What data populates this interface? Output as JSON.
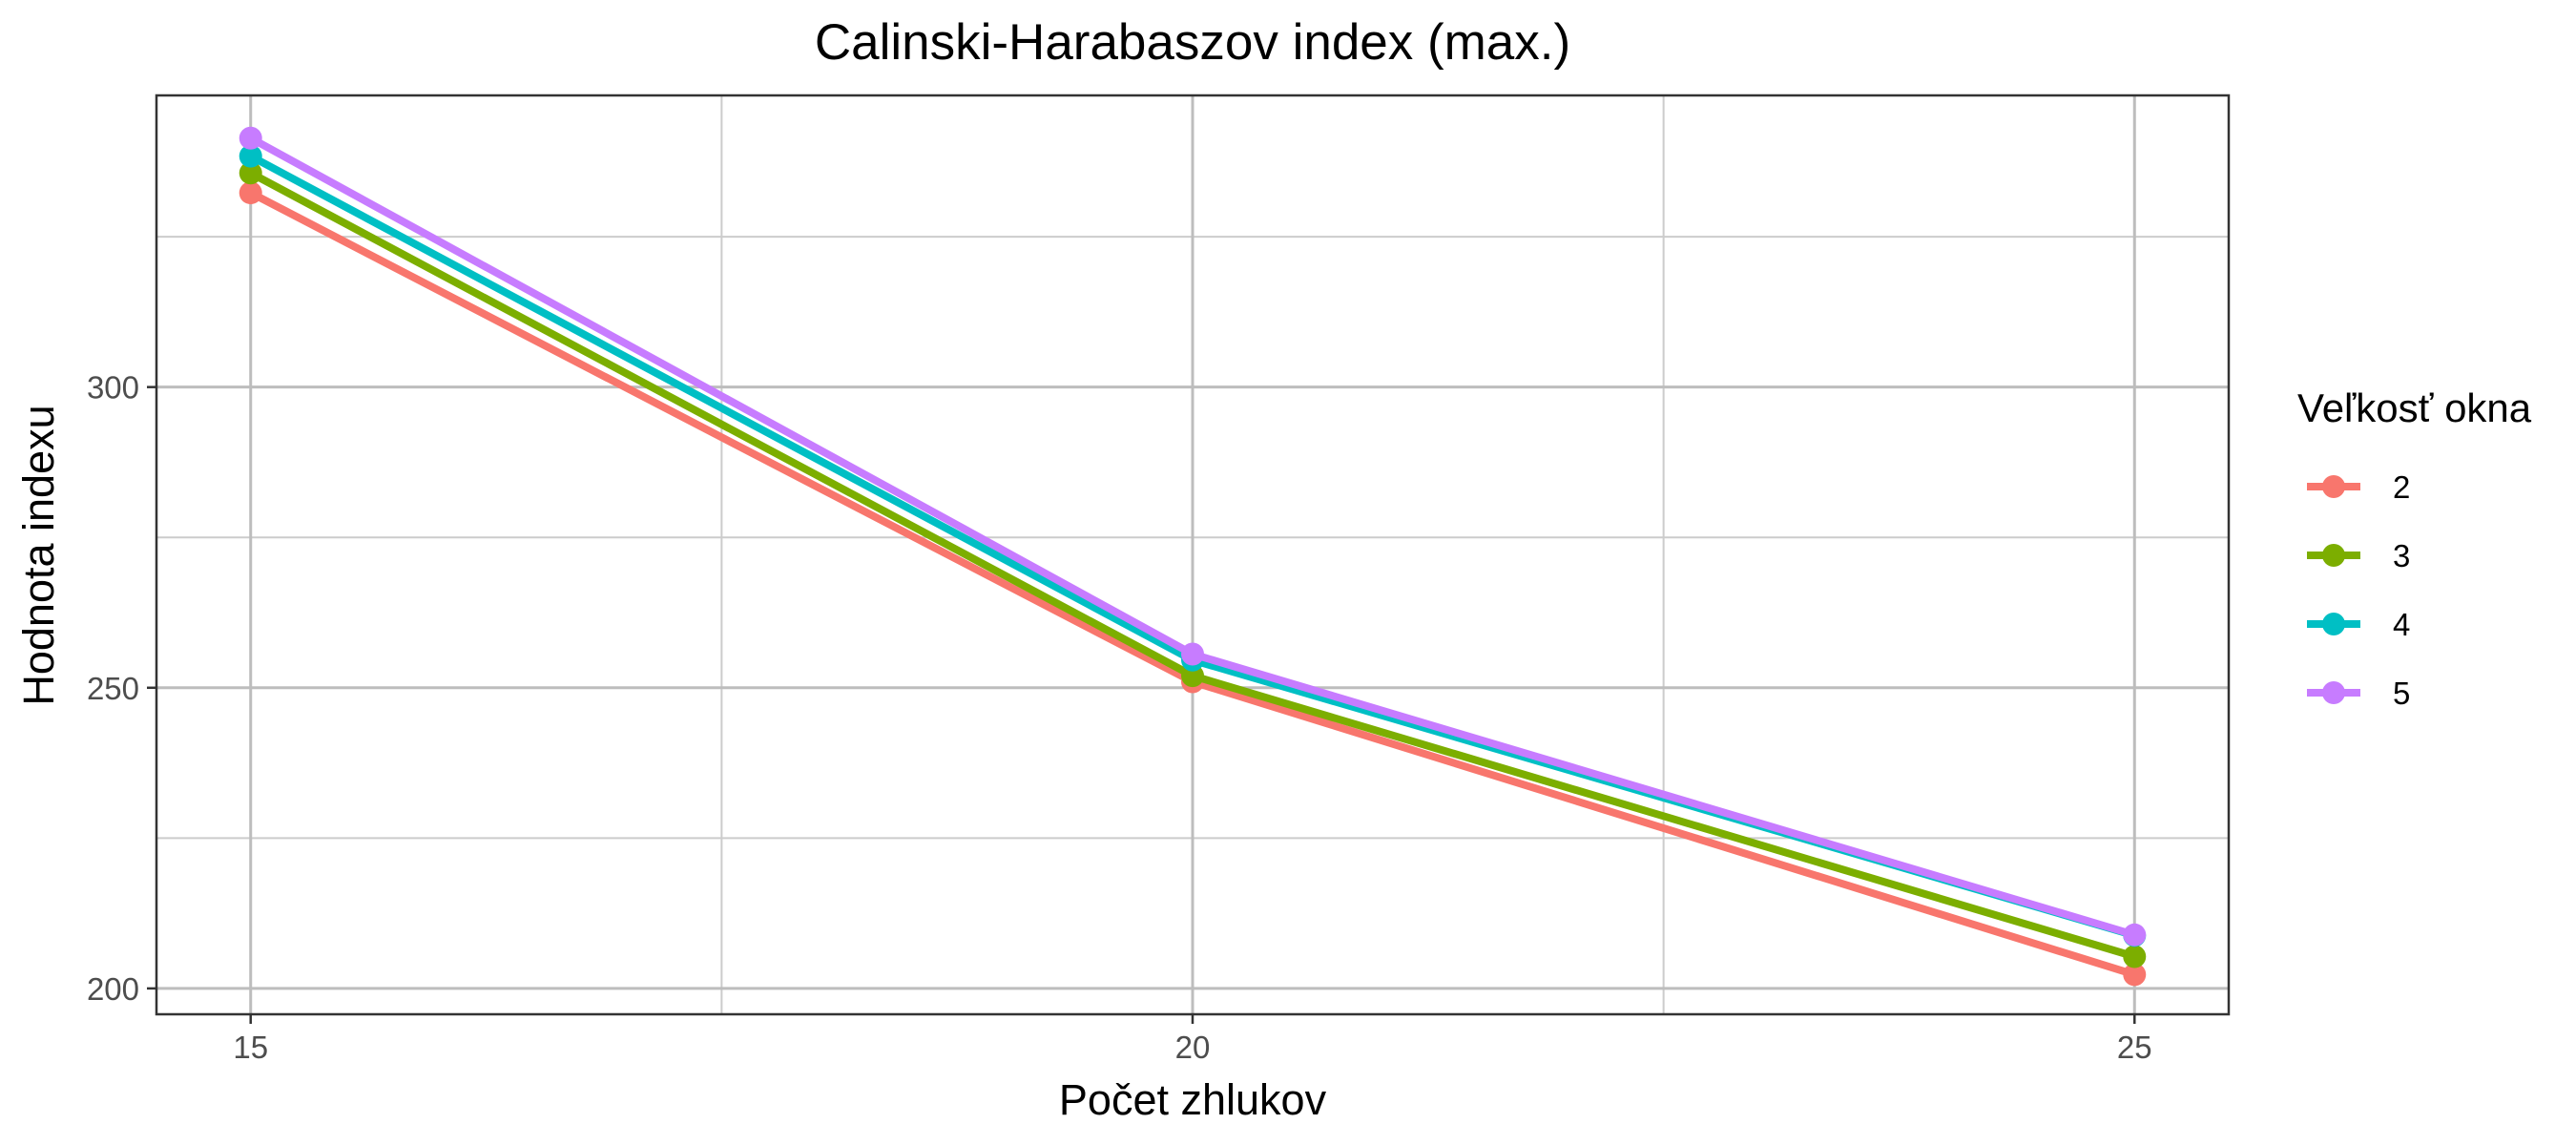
{
  "chart_data": {
    "type": "line",
    "title": "Calinski-Harabaszov index (max.)",
    "xlabel": "Počet zhlukov",
    "ylabel": "Hodnota indexu",
    "x": [
      15,
      20,
      25
    ],
    "xlim": [
      14.5,
      25.5
    ],
    "ylim": [
      195.7,
      348.5
    ],
    "x_ticks": [
      15,
      20,
      25
    ],
    "y_ticks": [
      200,
      250,
      300
    ],
    "x_minor_ticks": [
      17.5,
      22.5
    ],
    "y_minor_ticks": [
      225,
      275,
      325
    ],
    "grid": true,
    "legend": {
      "title": "Veľkosť okna",
      "position": "right"
    },
    "series": [
      {
        "name": "2",
        "values": [
          332.3,
          251.0,
          202.3
        ],
        "color": "#F8766D"
      },
      {
        "name": "3",
        "values": [
          335.6,
          252.0,
          205.3
        ],
        "color": "#7CAE00"
      },
      {
        "name": "4",
        "values": [
          338.4,
          254.6,
          208.8
        ],
        "color": "#00BFC4"
      },
      {
        "name": "5",
        "values": [
          341.4,
          255.6,
          208.9
        ],
        "color": "#C77CFF"
      }
    ]
  }
}
